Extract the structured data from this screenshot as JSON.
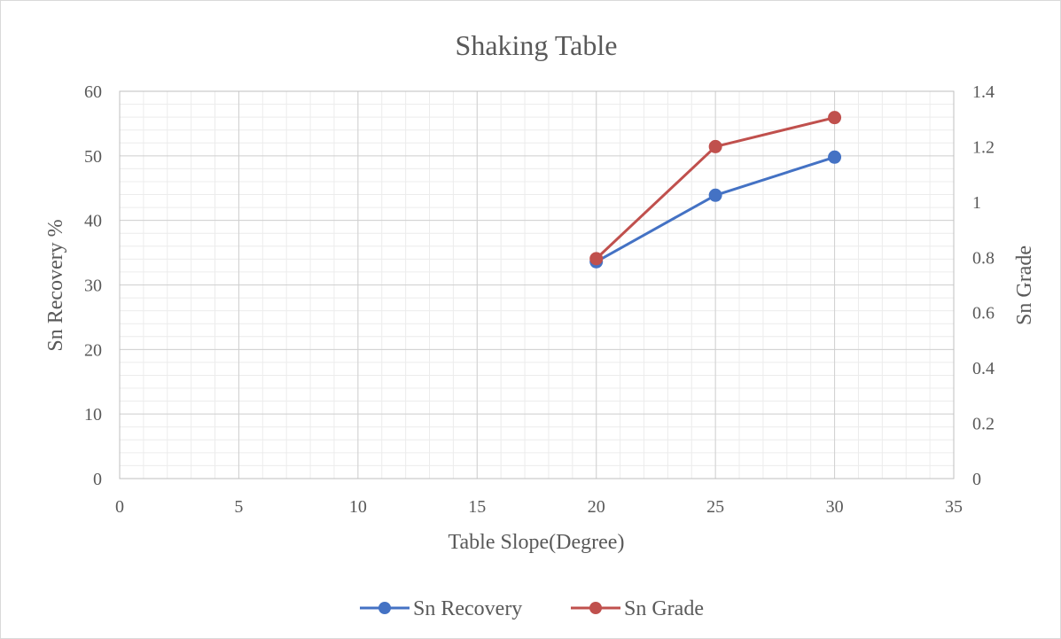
{
  "chart_data": {
    "type": "line",
    "title": "Shaking Table",
    "xlabel": "Table Slope(Degree)",
    "ylabel": "Sn Recovery %",
    "y2label": "Sn Grade",
    "xlim": [
      0,
      35
    ],
    "ylim": [
      0,
      60
    ],
    "y2lim": [
      0,
      1.4
    ],
    "x_ticks": [
      0,
      5,
      10,
      15,
      20,
      25,
      30,
      35
    ],
    "y_ticks": [
      0,
      10,
      20,
      30,
      40,
      50,
      60
    ],
    "y2_ticks": [
      0,
      0.2,
      0.4,
      0.6,
      0.8,
      1,
      1.2,
      1.4
    ],
    "grid": true,
    "legend_position": "bottom",
    "series": [
      {
        "name": "Sn Recovery",
        "axis": "left",
        "color": "#4472C4",
        "x": [
          20,
          25,
          30
        ],
        "values": [
          33.6,
          43.9,
          49.8
        ]
      },
      {
        "name": "Sn Grade",
        "axis": "right",
        "color": "#C0504D",
        "x": [
          20,
          25,
          30
        ],
        "values": [
          0.795,
          1.2,
          1.305
        ]
      }
    ]
  }
}
